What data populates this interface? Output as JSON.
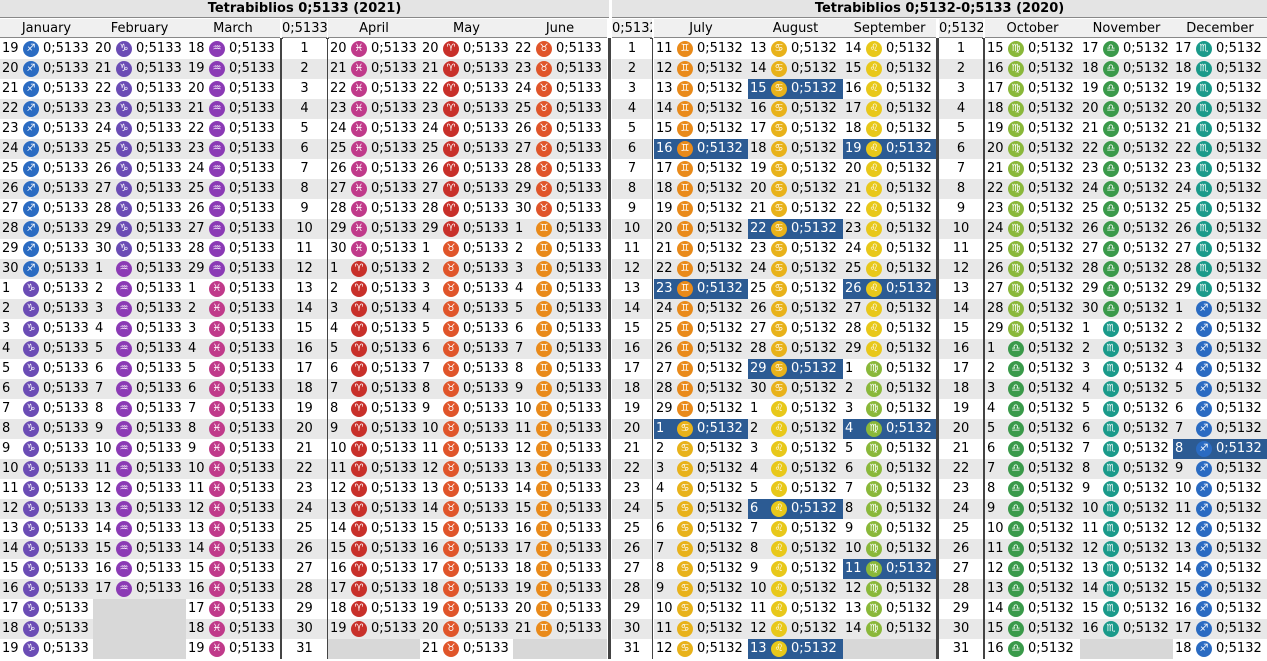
{
  "title_left": "Tetrabiblios 0;5133 (2021)",
  "title_right": "Tetrabiblios 0;5132-0;5133 (2020)",
  "left_months": [
    "January",
    "February",
    "March",
    "0;5133",
    "April",
    "May",
    "June",
    "0;5132"
  ],
  "right_months": [
    "July",
    "August",
    "September",
    "0;5132",
    "October",
    "November",
    "December"
  ],
  "row_numbers": [
    "1",
    "2",
    "3",
    "4",
    "5",
    "6",
    "7",
    "8",
    "9",
    "10",
    "11",
    "12",
    "13",
    "14",
    "15",
    "16",
    "17",
    "18",
    "19",
    "20",
    "21",
    "22",
    "23",
    "24",
    "25",
    "26",
    "27",
    "28",
    "29",
    "30",
    "31"
  ],
  "value": "0;5133",
  "value2": "0;5132",
  "months": {
    "jan": {
      "days": [
        "19",
        "20",
        "21",
        "22",
        "23",
        "24",
        "25",
        "26",
        "27",
        "28",
        "29",
        "30",
        "1",
        "2",
        "3",
        "4",
        "5",
        "6",
        "7",
        "8",
        "9",
        "10",
        "11",
        "12",
        "13",
        "14",
        "15",
        "16",
        "17",
        "18",
        "19"
      ],
      "signs": [
        "♐",
        "♐",
        "♐",
        "♐",
        "♐",
        "♐",
        "♐",
        "♐",
        "♐",
        "♐",
        "♐",
        "♐",
        "♑",
        "♑",
        "♑",
        "♑",
        "♑",
        "♑",
        "♑",
        "♑",
        "♑",
        "♑",
        "♑",
        "♑",
        "♑",
        "♑",
        "♑",
        "♑",
        "♑",
        "♑",
        "♑"
      ],
      "colors": [
        "#2a6bc2",
        "#2a6bc2",
        "#2a6bc2",
        "#2a6bc2",
        "#2a6bc2",
        "#2a6bc2",
        "#2a6bc2",
        "#2a6bc2",
        "#2a6bc2",
        "#2a6bc2",
        "#2a6bc2",
        "#2a6bc2",
        "#6b4cb5",
        "#6b4cb5",
        "#6b4cb5",
        "#6b4cb5",
        "#6b4cb5",
        "#6b4cb5",
        "#6b4cb5",
        "#6b4cb5",
        "#6b4cb5",
        "#6b4cb5",
        "#6b4cb5",
        "#6b4cb5",
        "#6b4cb5",
        "#6b4cb5",
        "#6b4cb5",
        "#6b4cb5",
        "#6b4cb5",
        "#6b4cb5",
        "#6b4cb5"
      ]
    },
    "feb": {
      "days": [
        "20",
        "21",
        "22",
        "23",
        "24",
        "25",
        "26",
        "27",
        "28",
        "29",
        "30",
        "1",
        "2",
        "3",
        "4",
        "5",
        "6",
        "7",
        "8",
        "9",
        "10",
        "11",
        "12",
        "13",
        "14",
        "15",
        "16",
        "17",
        "",
        "",
        ""
      ],
      "signs": [
        "♑",
        "♑",
        "♑",
        "♑",
        "♑",
        "♑",
        "♑",
        "♑",
        "♑",
        "♑",
        "♑",
        "♒",
        "♒",
        "♒",
        "♒",
        "♒",
        "♒",
        "♒",
        "♒",
        "♒",
        "♒",
        "♒",
        "♒",
        "♒",
        "♒",
        "♒",
        "♒",
        "♒",
        "",
        "",
        ""
      ],
      "colors": [
        "#6b4cb5",
        "#6b4cb5",
        "#6b4cb5",
        "#6b4cb5",
        "#6b4cb5",
        "#6b4cb5",
        "#6b4cb5",
        "#6b4cb5",
        "#6b4cb5",
        "#6b4cb5",
        "#6b4cb5",
        "#8b3ab5",
        "#8b3ab5",
        "#8b3ab5",
        "#8b3ab5",
        "#8b3ab5",
        "#8b3ab5",
        "#8b3ab5",
        "#8b3ab5",
        "#8b3ab5",
        "#8b3ab5",
        "#8b3ab5",
        "#8b3ab5",
        "#8b3ab5",
        "#8b3ab5",
        "#8b3ab5",
        "#8b3ab5",
        "#8b3ab5",
        "",
        "",
        ""
      ]
    },
    "mar": {
      "days": [
        "18",
        "19",
        "20",
        "21",
        "22",
        "23",
        "24",
        "25",
        "26",
        "27",
        "28",
        "29",
        "1",
        "2",
        "3",
        "4",
        "5",
        "6",
        "7",
        "8",
        "9",
        "10",
        "11",
        "12",
        "13",
        "14",
        "15",
        "16",
        "17",
        "18",
        "19"
      ],
      "signs": [
        "♒",
        "♒",
        "♒",
        "♒",
        "♒",
        "♒",
        "♒",
        "♒",
        "♒",
        "♒",
        "♒",
        "♒",
        "♓",
        "♓",
        "♓",
        "♓",
        "♓",
        "♓",
        "♓",
        "♓",
        "♓",
        "♓",
        "♓",
        "♓",
        "♓",
        "♓",
        "♓",
        "♓",
        "♓",
        "♓",
        "♓"
      ],
      "colors": [
        "#8b3ab5",
        "#8b3ab5",
        "#8b3ab5",
        "#8b3ab5",
        "#8b3ab5",
        "#8b3ab5",
        "#8b3ab5",
        "#8b3ab5",
        "#8b3ab5",
        "#8b3ab5",
        "#8b3ab5",
        "#8b3ab5",
        "#c03a8a",
        "#c03a8a",
        "#c03a8a",
        "#c03a8a",
        "#c03a8a",
        "#c03a8a",
        "#c03a8a",
        "#c03a8a",
        "#c03a8a",
        "#c03a8a",
        "#c03a8a",
        "#c03a8a",
        "#c03a8a",
        "#c03a8a",
        "#c03a8a",
        "#c03a8a",
        "#c03a8a",
        "#c03a8a",
        "#c03a8a"
      ]
    },
    "apr": {
      "days": [
        "20",
        "21",
        "22",
        "23",
        "24",
        "25",
        "26",
        "27",
        "28",
        "29",
        "30",
        "1",
        "2",
        "3",
        "4",
        "5",
        "6",
        "7",
        "8",
        "9",
        "10",
        "11",
        "12",
        "13",
        "14",
        "15",
        "16",
        "17",
        "18",
        "19",
        ""
      ],
      "signs": [
        "♓",
        "♓",
        "♓",
        "♓",
        "♓",
        "♓",
        "♓",
        "♓",
        "♓",
        "♓",
        "♓",
        "♈",
        "♈",
        "♈",
        "♈",
        "♈",
        "♈",
        "♈",
        "♈",
        "♈",
        "♈",
        "♈",
        "♈",
        "♈",
        "♈",
        "♈",
        "♈",
        "♈",
        "♈",
        "♈",
        ""
      ],
      "colors": [
        "#c03a8a",
        "#c03a8a",
        "#c03a8a",
        "#c03a8a",
        "#c03a8a",
        "#c03a8a",
        "#c03a8a",
        "#c03a8a",
        "#c03a8a",
        "#c03a8a",
        "#c03a8a",
        "#c8302a",
        "#c8302a",
        "#c8302a",
        "#c8302a",
        "#c8302a",
        "#c8302a",
        "#c8302a",
        "#c8302a",
        "#c8302a",
        "#c8302a",
        "#c8302a",
        "#c8302a",
        "#c8302a",
        "#c8302a",
        "#c8302a",
        "#c8302a",
        "#c8302a",
        "#c8302a",
        "#c8302a",
        ""
      ]
    },
    "may": {
      "days": [
        "20",
        "21",
        "22",
        "23",
        "24",
        "25",
        "26",
        "27",
        "28",
        "29",
        "1",
        "2",
        "3",
        "4",
        "5",
        "6",
        "7",
        "8",
        "9",
        "10",
        "11",
        "12",
        "13",
        "14",
        "15",
        "16",
        "17",
        "18",
        "19",
        "20",
        "21"
      ],
      "signs": [
        "♈",
        "♈",
        "♈",
        "♈",
        "♈",
        "♈",
        "♈",
        "♈",
        "♈",
        "♈",
        "♉",
        "♉",
        "♉",
        "♉",
        "♉",
        "♉",
        "♉",
        "♉",
        "♉",
        "♉",
        "♉",
        "♉",
        "♉",
        "♉",
        "♉",
        "♉",
        "♉",
        "♉",
        "♉",
        "♉",
        "♉"
      ],
      "colors": [
        "#c8302a",
        "#c8302a",
        "#c8302a",
        "#c8302a",
        "#c8302a",
        "#c8302a",
        "#c8302a",
        "#c8302a",
        "#c8302a",
        "#c8302a",
        "#e0552a",
        "#e0552a",
        "#e0552a",
        "#e0552a",
        "#e0552a",
        "#e0552a",
        "#e0552a",
        "#e0552a",
        "#e0552a",
        "#e0552a",
        "#e0552a",
        "#e0552a",
        "#e0552a",
        "#e0552a",
        "#e0552a",
        "#e0552a",
        "#e0552a",
        "#e0552a",
        "#e0552a",
        "#e0552a",
        "#e0552a"
      ]
    },
    "jun": {
      "days": [
        "22",
        "23",
        "24",
        "25",
        "26",
        "27",
        "28",
        "29",
        "30",
        "1",
        "2",
        "3",
        "4",
        "5",
        "6",
        "7",
        "8",
        "9",
        "10",
        "11",
        "12",
        "13",
        "14",
        "15",
        "16",
        "17",
        "18",
        "19",
        "20",
        "21",
        ""
      ],
      "signs": [
        "♉",
        "♉",
        "♉",
        "♉",
        "♉",
        "♉",
        "♉",
        "♉",
        "♉",
        "♊",
        "♊",
        "♊",
        "♊",
        "♊",
        "♊",
        "♊",
        "♊",
        "♊",
        "♊",
        "♊",
        "♊",
        "♊",
        "♊",
        "♊",
        "♊",
        "♊",
        "♊",
        "♊",
        "♊",
        "♊",
        ""
      ],
      "colors": [
        "#e0552a",
        "#e0552a",
        "#e0552a",
        "#e0552a",
        "#e0552a",
        "#e0552a",
        "#e0552a",
        "#e0552a",
        "#e0552a",
        "#e98a1a",
        "#e98a1a",
        "#e98a1a",
        "#e98a1a",
        "#e98a1a",
        "#e98a1a",
        "#e98a1a",
        "#e98a1a",
        "#e98a1a",
        "#e98a1a",
        "#e98a1a",
        "#e98a1a",
        "#e98a1a",
        "#e98a1a",
        "#e98a1a",
        "#e98a1a",
        "#e98a1a",
        "#e98a1a",
        "#e98a1a",
        "#e98a1a",
        "#e98a1a",
        ""
      ]
    },
    "jul": {
      "days": [
        "11",
        "12",
        "13",
        "14",
        "15",
        "16",
        "17",
        "18",
        "19",
        "20",
        "21",
        "22",
        "23",
        "24",
        "25",
        "26",
        "27",
        "28",
        "29",
        "1",
        "2",
        "3",
        "4",
        "5",
        "6",
        "7",
        "8",
        "9",
        "10",
        "11",
        "12"
      ],
      "signs": [
        "♊",
        "♊",
        "♊",
        "♊",
        "♊",
        "♊",
        "♊",
        "♊",
        "♊",
        "♊",
        "♊",
        "♊",
        "♊",
        "♊",
        "♊",
        "♊",
        "♊",
        "♊",
        "♊",
        "♋",
        "♋",
        "♋",
        "♋",
        "♋",
        "♋",
        "♋",
        "♋",
        "♋",
        "♋",
        "♋",
        "♋"
      ],
      "colors": [
        "#e98a1a",
        "#e98a1a",
        "#e98a1a",
        "#e98a1a",
        "#e98a1a",
        "#e98a1a",
        "#e98a1a",
        "#e98a1a",
        "#e98a1a",
        "#e98a1a",
        "#e98a1a",
        "#e98a1a",
        "#e98a1a",
        "#e98a1a",
        "#e98a1a",
        "#e98a1a",
        "#e98a1a",
        "#e98a1a",
        "#e98a1a",
        "#e8b21a",
        "#e8b21a",
        "#e8b21a",
        "#e8b21a",
        "#e8b21a",
        "#e8b21a",
        "#e8b21a",
        "#e8b21a",
        "#e8b21a",
        "#e8b21a",
        "#e8b21a",
        "#e8b21a"
      ]
    },
    "aug": {
      "days": [
        "13",
        "14",
        "15",
        "16",
        "17",
        "18",
        "19",
        "20",
        "21",
        "22",
        "23",
        "24",
        "25",
        "26",
        "27",
        "28",
        "29",
        "30",
        "1",
        "2",
        "3",
        "4",
        "5",
        "6",
        "7",
        "8",
        "9",
        "10",
        "11",
        "12",
        "13"
      ],
      "signs": [
        "♋",
        "♋",
        "♋",
        "♋",
        "♋",
        "♋",
        "♋",
        "♋",
        "♋",
        "♋",
        "♋",
        "♋",
        "♋",
        "♋",
        "♋",
        "♋",
        "♋",
        "♋",
        "♌",
        "♌",
        "♌",
        "♌",
        "♌",
        "♌",
        "♌",
        "♌",
        "♌",
        "♌",
        "♌",
        "♌",
        "♌"
      ],
      "colors": [
        "#e8b21a",
        "#e8b21a",
        "#e8b21a",
        "#e8b21a",
        "#e8b21a",
        "#e8b21a",
        "#e8b21a",
        "#e8b21a",
        "#e8b21a",
        "#e8b21a",
        "#e8b21a",
        "#e8b21a",
        "#e8b21a",
        "#e8b21a",
        "#e8b21a",
        "#e8b21a",
        "#e8b21a",
        "#e8b21a",
        "#e8c81a",
        "#e8c81a",
        "#e8c81a",
        "#e8c81a",
        "#e8c81a",
        "#e8c81a",
        "#e8c81a",
        "#e8c81a",
        "#e8c81a",
        "#e8c81a",
        "#e8c81a",
        "#e8c81a",
        "#e8c81a"
      ]
    },
    "sep": {
      "days": [
        "14",
        "15",
        "16",
        "17",
        "18",
        "19",
        "20",
        "21",
        "22",
        "23",
        "24",
        "25",
        "26",
        "27",
        "28",
        "29",
        "1",
        "2",
        "3",
        "4",
        "5",
        "6",
        "7",
        "8",
        "9",
        "10",
        "11",
        "12",
        "13",
        "14",
        ""
      ],
      "signs": [
        "♌",
        "♌",
        "♌",
        "♌",
        "♌",
        "♌",
        "♌",
        "♌",
        "♌",
        "♌",
        "♌",
        "♌",
        "♌",
        "♌",
        "♌",
        "♌",
        "♍",
        "♍",
        "♍",
        "♍",
        "♍",
        "♍",
        "♍",
        "♍",
        "♍",
        "♍",
        "♍",
        "♍",
        "♍",
        "♍",
        ""
      ],
      "colors": [
        "#e8c81a",
        "#e8c81a",
        "#e8c81a",
        "#e8c81a",
        "#e8c81a",
        "#e8c81a",
        "#e8c81a",
        "#e8c81a",
        "#e8c81a",
        "#e8c81a",
        "#e8c81a",
        "#e8c81a",
        "#e8c81a",
        "#e8c81a",
        "#e8c81a",
        "#e8c81a",
        "#8ab83a",
        "#8ab83a",
        "#8ab83a",
        "#8ab83a",
        "#8ab83a",
        "#8ab83a",
        "#8ab83a",
        "#8ab83a",
        "#8ab83a",
        "#8ab83a",
        "#8ab83a",
        "#8ab83a",
        "#8ab83a",
        "#8ab83a",
        ""
      ]
    },
    "oct": {
      "days": [
        "15",
        "16",
        "17",
        "18",
        "19",
        "20",
        "21",
        "22",
        "23",
        "24",
        "25",
        "26",
        "27",
        "28",
        "29",
        "1",
        "2",
        "3",
        "4",
        "5",
        "6",
        "7",
        "8",
        "9",
        "10",
        "11",
        "12",
        "13",
        "14",
        "15",
        "16"
      ],
      "signs": [
        "♍",
        "♍",
        "♍",
        "♍",
        "♍",
        "♍",
        "♍",
        "♍",
        "♍",
        "♍",
        "♍",
        "♍",
        "♍",
        "♍",
        "♍",
        "♎",
        "♎",
        "♎",
        "♎",
        "♎",
        "♎",
        "♎",
        "♎",
        "♎",
        "♎",
        "♎",
        "♎",
        "♎",
        "♎",
        "♎",
        "♎"
      ],
      "colors": [
        "#8ab83a",
        "#8ab83a",
        "#8ab83a",
        "#8ab83a",
        "#8ab83a",
        "#8ab83a",
        "#8ab83a",
        "#8ab83a",
        "#8ab83a",
        "#8ab83a",
        "#8ab83a",
        "#8ab83a",
        "#8ab83a",
        "#8ab83a",
        "#8ab83a",
        "#3a9a4a",
        "#3a9a4a",
        "#3a9a4a",
        "#3a9a4a",
        "#3a9a4a",
        "#3a9a4a",
        "#3a9a4a",
        "#3a9a4a",
        "#3a9a4a",
        "#3a9a4a",
        "#3a9a4a",
        "#3a9a4a",
        "#3a9a4a",
        "#3a9a4a",
        "#3a9a4a",
        "#3a9a4a"
      ]
    },
    "nov": {
      "days": [
        "17",
        "18",
        "19",
        "20",
        "21",
        "22",
        "23",
        "24",
        "25",
        "26",
        "27",
        "28",
        "29",
        "30",
        "1",
        "2",
        "3",
        "4",
        "5",
        "6",
        "7",
        "8",
        "9",
        "10",
        "11",
        "12",
        "13",
        "14",
        "15",
        "16",
        ""
      ],
      "signs": [
        "♎",
        "♎",
        "♎",
        "♎",
        "♎",
        "♎",
        "♎",
        "♎",
        "♎",
        "♎",
        "♎",
        "♎",
        "♎",
        "♎",
        "♏",
        "♏",
        "♏",
        "♏",
        "♏",
        "♏",
        "♏",
        "♏",
        "♏",
        "♏",
        "♏",
        "♏",
        "♏",
        "♏",
        "♏",
        "♏",
        ""
      ],
      "colors": [
        "#3a9a4a",
        "#3a9a4a",
        "#3a9a4a",
        "#3a9a4a",
        "#3a9a4a",
        "#3a9a4a",
        "#3a9a4a",
        "#3a9a4a",
        "#3a9a4a",
        "#3a9a4a",
        "#3a9a4a",
        "#3a9a4a",
        "#3a9a4a",
        "#3a9a4a",
        "#1a9a8a",
        "#1a9a8a",
        "#1a9a8a",
        "#1a9a8a",
        "#1a9a8a",
        "#1a9a8a",
        "#1a9a8a",
        "#1a9a8a",
        "#1a9a8a",
        "#1a9a8a",
        "#1a9a8a",
        "#1a9a8a",
        "#1a9a8a",
        "#1a9a8a",
        "#1a9a8a",
        "#1a9a8a",
        ""
      ]
    },
    "dec": {
      "days": [
        "17",
        "18",
        "19",
        "20",
        "21",
        "22",
        "23",
        "24",
        "25",
        "26",
        "27",
        "28",
        "29",
        "1",
        "2",
        "3",
        "4",
        "5",
        "6",
        "7",
        "8",
        "9",
        "10",
        "11",
        "12",
        "13",
        "14",
        "15",
        "16",
        "17",
        "18"
      ],
      "signs": [
        "♏",
        "♏",
        "♏",
        "♏",
        "♏",
        "♏",
        "♏",
        "♏",
        "♏",
        "♏",
        "♏",
        "♏",
        "♏",
        "♐",
        "♐",
        "♐",
        "♐",
        "♐",
        "♐",
        "♐",
        "♐",
        "♐",
        "♐",
        "♐",
        "♐",
        "♐",
        "♐",
        "♐",
        "♐",
        "♐",
        "♐"
      ],
      "colors": [
        "#1a9a8a",
        "#1a9a8a",
        "#1a9a8a",
        "#1a9a8a",
        "#1a9a8a",
        "#1a9a8a",
        "#1a9a8a",
        "#1a9a8a",
        "#1a9a8a",
        "#1a9a8a",
        "#1a9a8a",
        "#1a9a8a",
        "#1a9a8a",
        "#2a6bc2",
        "#2a6bc2",
        "#2a6bc2",
        "#2a6bc2",
        "#2a6bc2",
        "#2a6bc2",
        "#2a6bc2",
        "#2a6bc2",
        "#2a6bc2",
        "#2a6bc2",
        "#2a6bc2",
        "#2a6bc2",
        "#2a6bc2",
        "#2a6bc2",
        "#2a6bc2",
        "#2a6bc2",
        "#2a6bc2",
        "#2a6bc2"
      ]
    }
  },
  "highlighted": {
    "jul": [
      5,
      12,
      19
    ],
    "aug": [
      2,
      9,
      16,
      23,
      30
    ],
    "sep": [
      5,
      12,
      19,
      26
    ],
    "dec": [
      20
    ]
  }
}
